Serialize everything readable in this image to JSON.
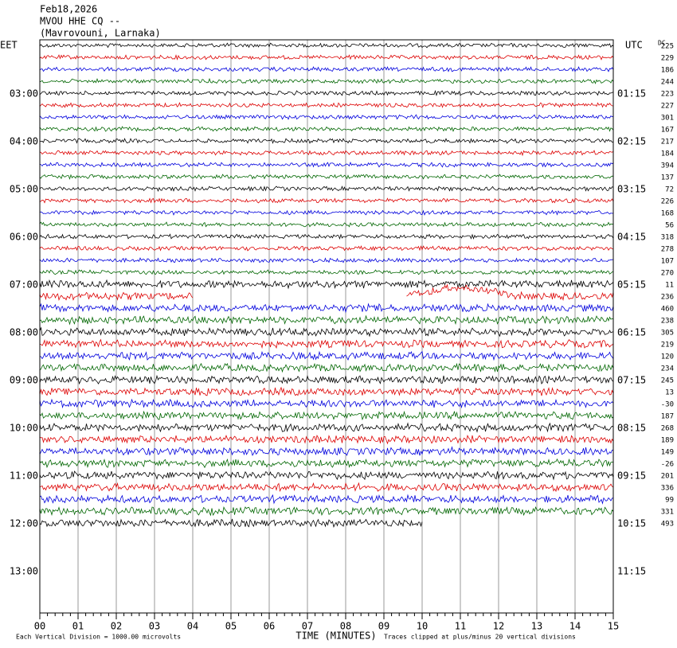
{
  "header": {
    "date": "Feb18,2026",
    "station": "MVOU HHE CQ --",
    "place": "(Mavrovouni, Larnaka)"
  },
  "left_zone": "EET",
  "right_zone": "UTC",
  "dc_heading": "DC",
  "left_labels": [
    "03:00",
    "04:00",
    "05:00",
    "06:00",
    "07:00",
    "08:00",
    "09:00",
    "10:00",
    "11:00",
    "12:00",
    "13:00"
  ],
  "right_labels": [
    "01:15",
    "02:15",
    "03:15",
    "04:15",
    "05:15",
    "06:15",
    "07:15",
    "08:15",
    "09:15",
    "10:15",
    "11:15"
  ],
  "dc_offsets": [
    "225",
    "229",
    "186",
    "244",
    "223",
    "227",
    "301",
    "167",
    "217",
    "184",
    "394",
    "137",
    "72",
    "226",
    "168",
    "56",
    "318",
    "278",
    "107",
    "270",
    "11",
    "236",
    "460",
    "238",
    "305",
    "219",
    "120",
    "234",
    "245",
    "13",
    "-30",
    "187",
    "268",
    "189",
    "149",
    "-26",
    "201",
    "336",
    "99",
    "331",
    "493"
  ],
  "x_ticks": [
    "00",
    "01",
    "02",
    "03",
    "04",
    "05",
    "06",
    "07",
    "08",
    "09",
    "10",
    "11",
    "12",
    "13",
    "14",
    "15"
  ],
  "footer": {
    "division": "Each Vertical Division = 1000.00 microvolts",
    "axis_title": "TIME (MINUTES)",
    "clip_note": "Traces clipped at plus/minus 20 vertical divisions"
  }
}
